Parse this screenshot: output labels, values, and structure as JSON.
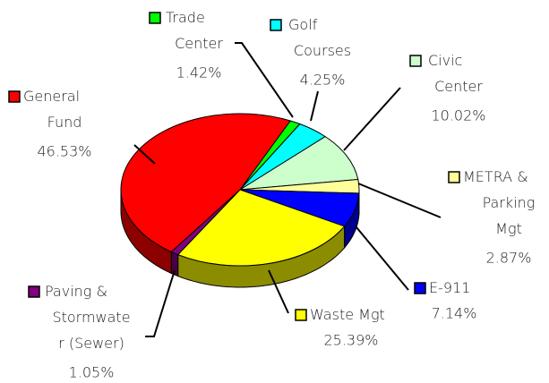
{
  "chart_data": {
    "type": "pie",
    "categories": [
      "Trade\nCenter",
      "Golf\nCourses",
      "Civic\nCenter",
      "METRA &\nParking\nMgt",
      "E-911",
      "Waste Mgt",
      "Paving &\nStormwate\nr (Sewer)",
      "General\nFund"
    ],
    "values": [
      1.42,
      4.25,
      10.02,
      2.87,
      7.14,
      25.39,
      1.05,
      46.53
    ],
    "value_labels": [
      "1.42%",
      "4.25%",
      "10.02%",
      "2.87%",
      "7.14%",
      "25.39%",
      "1.05%",
      "46.53%"
    ],
    "colors": [
      "#00ff00",
      "#00ffff",
      "#ccffcc",
      "#ffff99",
      "#0000ff",
      "#ffff00",
      "#800080",
      "#ff0000"
    ]
  }
}
